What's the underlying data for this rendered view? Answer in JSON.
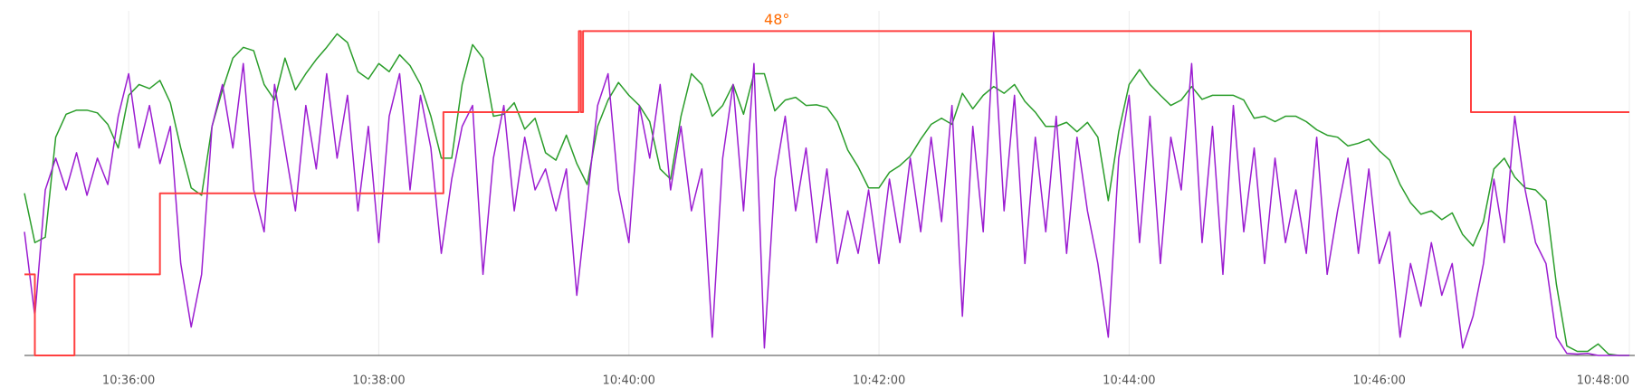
{
  "chart_data": {
    "type": "line",
    "x": [
      "10:35:10",
      "10:35:15",
      "10:35:20",
      "10:35:25",
      "10:35:30",
      "10:35:35",
      "10:35:40",
      "10:35:45",
      "10:35:50",
      "10:35:55",
      "10:36:00",
      "10:36:05",
      "10:36:10",
      "10:36:15",
      "10:36:20",
      "10:36:25",
      "10:36:30",
      "10:36:35",
      "10:36:40",
      "10:36:45",
      "10:36:50",
      "10:36:55",
      "10:37:00",
      "10:37:05",
      "10:37:10",
      "10:37:15",
      "10:37:20",
      "10:37:25",
      "10:37:30",
      "10:37:35",
      "10:37:40",
      "10:37:45",
      "10:37:50",
      "10:37:55",
      "10:38:00",
      "10:38:05",
      "10:38:10",
      "10:38:15",
      "10:38:20",
      "10:38:25",
      "10:38:30",
      "10:38:35",
      "10:38:40",
      "10:38:45",
      "10:38:50",
      "10:38:55",
      "10:39:00",
      "10:39:05",
      "10:39:10",
      "10:39:15",
      "10:39:20",
      "10:39:25",
      "10:39:30",
      "10:39:35",
      "10:39:40",
      "10:39:45",
      "10:39:50",
      "10:39:55",
      "10:40:00",
      "10:40:05",
      "10:40:10",
      "10:40:15",
      "10:40:20",
      "10:40:25",
      "10:40:30",
      "10:40:35",
      "10:40:40",
      "10:40:45",
      "10:40:50",
      "10:40:55",
      "10:41:00",
      "10:41:05",
      "10:41:10",
      "10:41:15",
      "10:41:20",
      "10:41:25",
      "10:41:30",
      "10:41:35",
      "10:41:40",
      "10:41:45",
      "10:41:50",
      "10:41:55",
      "10:42:00",
      "10:42:05",
      "10:42:10",
      "10:42:15",
      "10:42:20",
      "10:42:25",
      "10:42:30",
      "10:42:35",
      "10:42:40",
      "10:42:45",
      "10:42:50",
      "10:42:55",
      "10:43:00",
      "10:43:05",
      "10:43:10",
      "10:43:15",
      "10:43:20",
      "10:43:25",
      "10:43:30",
      "10:43:35",
      "10:43:40",
      "10:43:45",
      "10:43:50",
      "10:43:55",
      "10:44:00",
      "10:44:05",
      "10:44:10",
      "10:44:15",
      "10:44:20",
      "10:44:25",
      "10:44:30",
      "10:44:35",
      "10:44:40",
      "10:44:45",
      "10:44:50",
      "10:44:55",
      "10:45:00",
      "10:45:05",
      "10:45:10",
      "10:45:15",
      "10:45:20",
      "10:45:25",
      "10:45:30",
      "10:45:35",
      "10:45:40",
      "10:45:45",
      "10:45:50",
      "10:45:55",
      "10:46:00",
      "10:46:05",
      "10:46:10",
      "10:46:15",
      "10:46:20",
      "10:46:25",
      "10:46:30",
      "10:46:35",
      "10:46:40",
      "10:46:45",
      "10:46:50",
      "10:46:55",
      "10:47:00",
      "10:47:05",
      "10:47:10",
      "10:47:15",
      "10:47:20",
      "10:47:25",
      "10:47:30",
      "10:47:35",
      "10:47:40",
      "10:47:45",
      "10:47:50",
      "10:47:55",
      "10:48:00"
    ],
    "series": [
      {
        "color": "#2a9d2a",
        "values": [
          24.0,
          16.7,
          17.5,
          32.3,
          35.7,
          36.3,
          36.3,
          35.9,
          34.2,
          30.7,
          38.5,
          40.1,
          39.5,
          40.7,
          37.4,
          30.7,
          24.8,
          23.7,
          33.9,
          39.3,
          44.0,
          45.6,
          45.1,
          40.1,
          37.8,
          44.0,
          39.3,
          41.7,
          43.8,
          45.6,
          47.6,
          46.3,
          42.0,
          40.9,
          43.2,
          42.0,
          44.5,
          42.9,
          40.1,
          35.4,
          29.2,
          29.2,
          40.1,
          46.0,
          44.0,
          35.4,
          35.7,
          37.4,
          33.5,
          35.1,
          30.0,
          28.9,
          32.6,
          28.4,
          25.3,
          33.9,
          37.8,
          40.4,
          38.5,
          37.0,
          34.6,
          27.6,
          26.1,
          35.4,
          41.7,
          40.1,
          35.4,
          37.0,
          40.1,
          35.7,
          41.7,
          41.7,
          36.2,
          37.8,
          38.2,
          37.0,
          37.1,
          36.7,
          34.6,
          30.4,
          27.9,
          24.8,
          24.8,
          27.1,
          28.1,
          29.5,
          32.0,
          34.2,
          35.1,
          34.2,
          38.8,
          36.5,
          38.5,
          39.8,
          38.8,
          40.1,
          37.6,
          36.0,
          33.9,
          33.9,
          34.5,
          33.1,
          34.5,
          32.3,
          22.9,
          33.1,
          40.1,
          42.3,
          40.1,
          38.5,
          37.0,
          37.8,
          39.8,
          37.9,
          38.5,
          38.5,
          38.5,
          37.8,
          35.1,
          35.4,
          34.6,
          35.4,
          35.4,
          34.6,
          33.4,
          32.6,
          32.3,
          31.0,
          31.4,
          32.0,
          30.3,
          28.9,
          25.3,
          22.6,
          20.9,
          21.4,
          20.1,
          21.1,
          17.9,
          16.2,
          19.8,
          27.6,
          29.2,
          26.4,
          24.8,
          24.5,
          22.9,
          10.5,
          1.4,
          0.6,
          0.6,
          1.7,
          0.2,
          0,
          0
        ]
      },
      {
        "color": "#9b1dd1",
        "values": [
          18.3,
          5.8,
          24.5,
          29.2,
          24.5,
          30.0,
          23.7,
          29.2,
          25.3,
          35.4,
          41.7,
          30.7,
          37.0,
          28.4,
          33.9,
          13.6,
          4.2,
          12.0,
          33.9,
          40.1,
          30.7,
          43.2,
          24.5,
          18.3,
          40.1,
          30.7,
          21.4,
          37.0,
          27.6,
          41.7,
          29.2,
          38.5,
          21.4,
          33.9,
          16.7,
          35.4,
          41.7,
          24.5,
          38.5,
          30.7,
          15.1,
          26.1,
          33.9,
          37.0,
          12.0,
          29.2,
          37.0,
          21.4,
          32.3,
          24.5,
          27.6,
          21.4,
          27.6,
          8.9,
          22.9,
          37.0,
          41.7,
          24.5,
          16.7,
          37.0,
          29.2,
          40.1,
          24.5,
          33.9,
          21.4,
          27.6,
          2.7,
          29.2,
          40.1,
          21.4,
          43.2,
          1.1,
          26.1,
          35.4,
          21.4,
          30.7,
          16.7,
          27.6,
          13.6,
          21.4,
          15.1,
          24.5,
          13.6,
          26.1,
          16.7,
          29.2,
          18.3,
          32.3,
          19.8,
          37.0,
          5.8,
          33.9,
          18.3,
          47.9,
          21.4,
          38.5,
          13.6,
          32.3,
          18.3,
          35.4,
          15.1,
          32.3,
          21.4,
          13.6,
          2.7,
          29.2,
          38.5,
          16.7,
          35.4,
          13.6,
          32.3,
          24.5,
          43.2,
          16.7,
          33.9,
          12.0,
          37.0,
          18.3,
          30.7,
          13.6,
          29.2,
          16.7,
          24.5,
          15.1,
          32.3,
          12.0,
          21.4,
          29.2,
          15.1,
          27.6,
          13.6,
          18.3,
          2.7,
          13.6,
          7.3,
          16.7,
          8.9,
          13.6,
          1.1,
          5.8,
          13.6,
          26.1,
          16.7,
          35.4,
          24.5,
          16.7,
          13.6,
          2.7,
          0.3,
          0.2,
          0.3,
          0,
          0,
          0,
          0
        ]
      },
      {
        "color": "#ff4040",
        "x": [
          "10:35:10",
          "10:35:15",
          "10:35:15",
          "10:35:34",
          "10:35:34",
          "10:36:15",
          "10:36:15",
          "10:38:31",
          "10:38:31",
          "10:39:36",
          "10:39:36",
          "10:39:37",
          "10:39:37",
          "10:39:38",
          "10:39:38",
          "10:46:44",
          "10:46:44",
          "10:48:00"
        ],
        "values": [
          12,
          12,
          0,
          0,
          12,
          12,
          24,
          24,
          36,
          36,
          48,
          48,
          36,
          36,
          48,
          48,
          36,
          36
        ]
      }
    ],
    "annotations": [
      {
        "label": "48°",
        "x": "10:41:11",
        "y": 48,
        "color": "#ff6a00"
      }
    ],
    "xlim": [
      "10:35:10",
      "10:48:00"
    ],
    "xticks": [
      "10:36:00",
      "10:38:00",
      "10:40:00",
      "10:42:00",
      "10:44:00",
      "10:46:00",
      "10:48:00"
    ],
    "ylim": [
      0,
      51
    ],
    "grid": true
  }
}
